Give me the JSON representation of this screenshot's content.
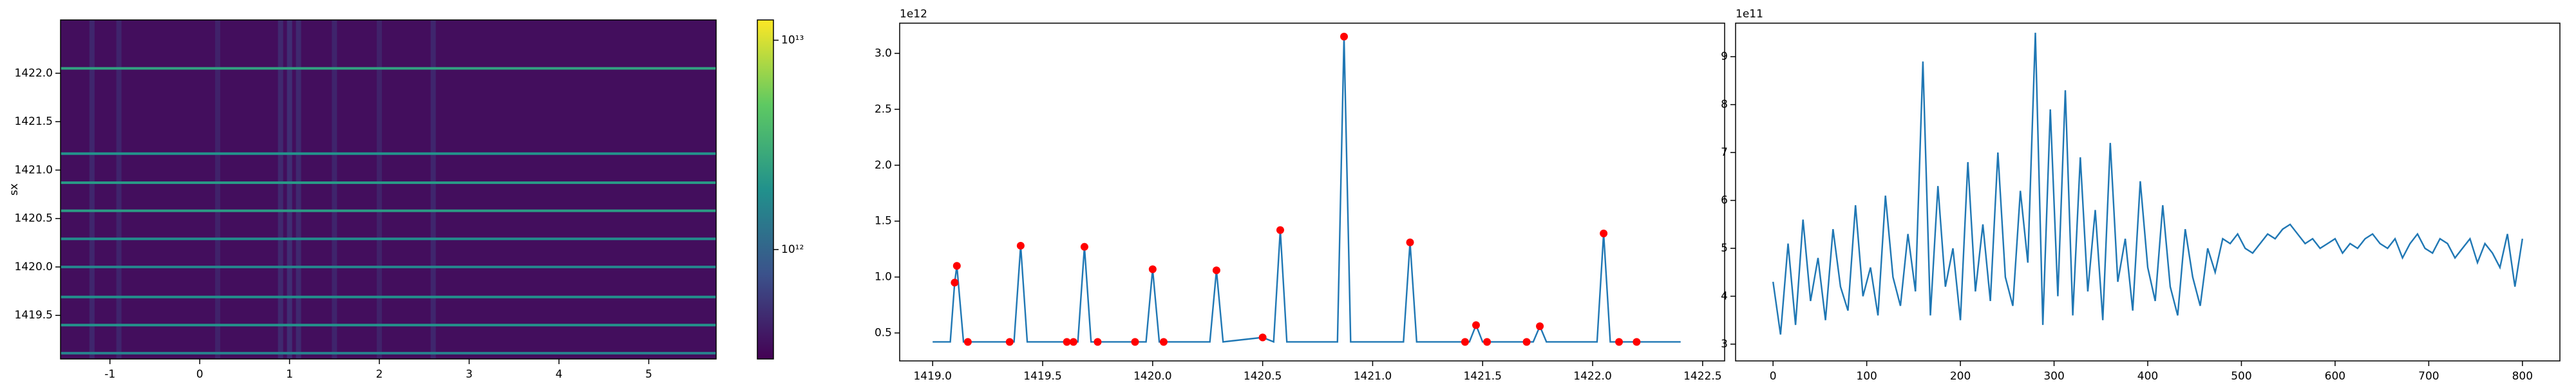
{
  "chart_data": [
    {
      "type": "heatmap",
      "ylabel": "sx",
      "colormap": "viridis",
      "xlim": [
        -1.55,
        5.75
      ],
      "ylim": [
        1419.05,
        1422.55
      ],
      "xticks": [
        -1,
        0,
        1,
        2,
        3,
        4,
        5
      ],
      "yticks": [
        1419.5,
        {
          "value": 1420,
          "label": "1420.0"
        },
        1420.5,
        {
          "value": 1421,
          "label": "1421.0"
        },
        1421.5,
        {
          "value": 1422,
          "label": "1422.0"
        }
      ],
      "background": 350000000000,
      "columns": [
        {
          "x": -1.2,
          "value": 500000000000
        },
        {
          "x": -0.9,
          "value": 480000000000
        },
        {
          "x": 0.2,
          "value": 470000000000
        },
        {
          "x": 0.9,
          "value": 520000000000
        },
        {
          "x": 1.0,
          "value": 560000000000
        },
        {
          "x": 1.1,
          "value": 520000000000
        },
        {
          "x": 1.5,
          "value": 480000000000
        },
        {
          "x": 2.0,
          "value": 470000000000
        },
        {
          "x": 2.6,
          "value": 500000000000
        }
      ],
      "rows": [
        {
          "y": 1422.05,
          "value": 2500000000000
        },
        {
          "y": 1421.17,
          "value": 2000000000000
        },
        {
          "y": 1420.87,
          "value": 2200000000000
        },
        {
          "y": 1420.58,
          "value": 2300000000000
        },
        {
          "y": 1420.29,
          "value": 1800000000000
        },
        {
          "y": 1420.0,
          "value": 1600000000000
        },
        {
          "y": 1419.69,
          "value": 1900000000000
        },
        {
          "y": 1419.4,
          "value": 2000000000000
        },
        {
          "y": 1419.11,
          "value": 1500000000000
        }
      ],
      "clim": [
        300000000000,
        12500000000000
      ],
      "clog": true,
      "cticks": [
        {
          "value": 1000000000000,
          "label": "10¹²"
        },
        {
          "value": 10000000000000,
          "label": "10¹³"
        }
      ]
    },
    {
      "type": "line",
      "offset_text": "1e12",
      "xlim": [
        1418.85,
        1422.6
      ],
      "ylim": [
        0.25,
        3.27
      ],
      "xticks": [
        {
          "value": 1419,
          "label": "1419.0"
        },
        1419.5,
        {
          "value": 1420,
          "label": "1420.0"
        },
        1420.5,
        {
          "value": 1421,
          "label": "1421.0"
        },
        1421.5,
        {
          "value": 1422,
          "label": "1422.0"
        },
        1422.5
      ],
      "yticks": [
        0.5,
        {
          "value": 1,
          "label": "1.0"
        },
        1.5,
        {
          "value": 2,
          "label": "2.0"
        },
        2.5,
        {
          "value": 3,
          "label": "3.0"
        }
      ],
      "series": [
        {
          "color": "#1f77b4",
          "marker": false,
          "x": [
            1419.0,
            1419.08,
            1419.1,
            1419.11,
            1419.14,
            1419.37,
            1419.4,
            1419.43,
            1419.66,
            1419.69,
            1419.72,
            1419.97,
            1420.0,
            1420.03,
            1420.26,
            1420.29,
            1420.32,
            1420.5,
            1420.55,
            1420.58,
            1420.61,
            1420.84,
            1420.87,
            1420.9,
            1421.14,
            1421.17,
            1421.2,
            1421.44,
            1421.47,
            1421.5,
            1421.73,
            1421.76,
            1421.79,
            1422.02,
            1422.05,
            1422.08,
            1422.4
          ],
          "values": [
            0.42,
            0.42,
            0.95,
            1.1,
            0.42,
            0.42,
            1.28,
            0.42,
            0.42,
            1.27,
            0.42,
            0.42,
            1.07,
            0.42,
            0.42,
            1.06,
            0.42,
            0.46,
            0.42,
            1.42,
            0.42,
            0.42,
            3.15,
            0.42,
            0.42,
            1.31,
            0.42,
            0.42,
            0.57,
            0.42,
            0.42,
            0.56,
            0.42,
            0.42,
            1.39,
            0.42,
            0.42
          ]
        },
        {
          "color": "#ff0000",
          "marker": true,
          "x": [
            1419.1,
            1419.11,
            1419.16,
            1419.35,
            1419.4,
            1419.61,
            1419.64,
            1419.69,
            1419.75,
            1419.92,
            1420.0,
            1420.05,
            1420.29,
            1420.5,
            1420.58,
            1420.87,
            1421.17,
            1421.42,
            1421.47,
            1421.52,
            1421.7,
            1421.76,
            1422.05,
            1422.12,
            1422.2
          ],
          "values": [
            0.95,
            1.1,
            0.42,
            0.42,
            1.28,
            0.42,
            0.42,
            1.27,
            0.42,
            0.42,
            1.07,
            0.42,
            1.06,
            0.46,
            1.42,
            3.15,
            1.31,
            0.42,
            0.57,
            0.42,
            0.42,
            0.56,
            1.39,
            0.42,
            0.42
          ]
        }
      ]
    },
    {
      "type": "line",
      "offset_text": "1e11",
      "xlim": [
        -40,
        840
      ],
      "ylim": [
        2.65,
        9.7
      ],
      "xticks": [
        0,
        100,
        200,
        300,
        400,
        500,
        600,
        700,
        800
      ],
      "yticks": [
        3,
        4,
        5,
        6,
        7,
        8,
        9
      ],
      "series": [
        {
          "color": "#1f77b4",
          "marker": false,
          "x": [
            0,
            8,
            16,
            24,
            32,
            40,
            48,
            56,
            64,
            72,
            80,
            88,
            96,
            104,
            112,
            120,
            128,
            136,
            144,
            152,
            160,
            168,
            176,
            184,
            192,
            200,
            208,
            216,
            224,
            232,
            240,
            248,
            256,
            264,
            272,
            280,
            288,
            296,
            304,
            312,
            320,
            328,
            336,
            344,
            352,
            360,
            368,
            376,
            384,
            392,
            400,
            408,
            416,
            424,
            432,
            440,
            448,
            456,
            464,
            472,
            480,
            488,
            496,
            504,
            512,
            520,
            528,
            536,
            544,
            552,
            560,
            568,
            576,
            584,
            592,
            600,
            608,
            616,
            624,
            632,
            640,
            648,
            656,
            664,
            672,
            680,
            688,
            696,
            704,
            712,
            720,
            728,
            736,
            744,
            752,
            760,
            768,
            776,
            784,
            792,
            800
          ],
          "values": [
            4.3,
            3.2,
            5.1,
            3.4,
            5.6,
            3.9,
            4.8,
            3.5,
            5.4,
            4.2,
            3.7,
            5.9,
            4.0,
            4.6,
            3.6,
            6.1,
            4.4,
            3.8,
            5.3,
            4.1,
            8.9,
            3.6,
            6.3,
            4.2,
            5.0,
            3.5,
            6.8,
            4.1,
            5.5,
            3.9,
            7.0,
            4.4,
            3.8,
            6.2,
            4.7,
            9.5,
            3.4,
            7.9,
            4.0,
            8.3,
            3.6,
            6.9,
            4.1,
            5.8,
            3.5,
            7.2,
            4.3,
            5.2,
            3.7,
            6.4,
            4.6,
            3.9,
            5.9,
            4.2,
            3.6,
            5.4,
            4.4,
            3.8,
            5.0,
            4.5,
            5.2,
            5.1,
            5.3,
            5.0,
            4.9,
            5.1,
            5.3,
            5.2,
            5.4,
            5.5,
            5.3,
            5.1,
            5.2,
            5.0,
            5.1,
            5.2,
            4.9,
            5.1,
            5.0,
            5.2,
            5.3,
            5.1,
            5.0,
            5.2,
            4.8,
            5.1,
            5.3,
            5.0,
            4.9,
            5.2,
            5.1,
            4.8,
            5.0,
            5.2,
            4.7,
            5.1,
            4.9,
            4.6,
            5.3,
            4.2,
            5.2
          ]
        }
      ]
    }
  ]
}
